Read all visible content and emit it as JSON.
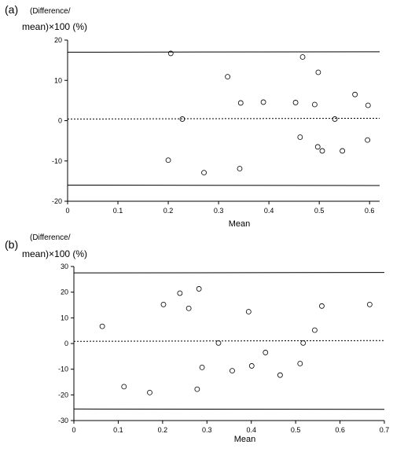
{
  "chart_data": [
    {
      "type": "scatter",
      "panel_label": "(a)",
      "ylabel_line1": "(Difference/",
      "ylabel_line2": "mean)×100 (%)",
      "xlabel": "Mean",
      "xlim": [
        0,
        0.62
      ],
      "ylim": [
        -20,
        20
      ],
      "xticks": [
        0,
        0.1,
        0.2,
        0.3,
        0.4,
        0.5,
        0.6
      ],
      "xtick_labels": [
        "0",
        "0.1",
        "0.2",
        "0.3",
        "0.4",
        "0.5",
        "0.6"
      ],
      "yticks": [
        -20,
        -10,
        0,
        10,
        20
      ],
      "ytick_labels": [
        "-20",
        "-10",
        "0",
        "10",
        "20"
      ],
      "mean_line": 0.5,
      "upper_limit": 17.0,
      "lower_limit": -16.0,
      "points": [
        {
          "x": 0.205,
          "y": 16.7
        },
        {
          "x": 0.228,
          "y": 0.4
        },
        {
          "x": 0.2,
          "y": -9.8
        },
        {
          "x": 0.271,
          "y": -12.9
        },
        {
          "x": 0.318,
          "y": 10.9
        },
        {
          "x": 0.344,
          "y": 4.4
        },
        {
          "x": 0.342,
          "y": -11.9
        },
        {
          "x": 0.389,
          "y": 4.6
        },
        {
          "x": 0.453,
          "y": 4.5
        },
        {
          "x": 0.467,
          "y": 15.8
        },
        {
          "x": 0.462,
          "y": -4.1
        },
        {
          "x": 0.491,
          "y": 4.0
        },
        {
          "x": 0.498,
          "y": 12.0
        },
        {
          "x": 0.497,
          "y": -6.5
        },
        {
          "x": 0.506,
          "y": -7.5
        },
        {
          "x": 0.531,
          "y": 0.4
        },
        {
          "x": 0.546,
          "y": -7.5
        },
        {
          "x": 0.571,
          "y": 6.5
        },
        {
          "x": 0.597,
          "y": 3.8
        },
        {
          "x": 0.596,
          "y": -4.8
        }
      ]
    },
    {
      "type": "scatter",
      "panel_label": "(b)",
      "ylabel_line1": "(Difference/",
      "ylabel_line2": "mean)×100 (%)",
      "xlabel": "Mean",
      "xlim": [
        0,
        0.7
      ],
      "ylim": [
        -30,
        30
      ],
      "xticks": [
        0,
        0.1,
        0.2,
        0.3,
        0.4,
        0.5,
        0.6,
        0.7
      ],
      "xtick_labels": [
        "0",
        "0.1",
        "0.2",
        "0.3",
        "0.4",
        "0.5",
        "0.6",
        "0.7"
      ],
      "yticks": [
        -30,
        -20,
        -10,
        0,
        10,
        20,
        30
      ],
      "ytick_labels": [
        "-30",
        "-20",
        "-10",
        "0",
        "10",
        "20",
        "30"
      ],
      "mean_line": 1.0,
      "upper_limit": 27.5,
      "lower_limit": -25.5,
      "points": [
        {
          "x": 0.064,
          "y": 6.7
        },
        {
          "x": 0.113,
          "y": -16.8
        },
        {
          "x": 0.171,
          "y": -19.1
        },
        {
          "x": 0.202,
          "y": 15.2
        },
        {
          "x": 0.239,
          "y": 19.6
        },
        {
          "x": 0.259,
          "y": 13.7
        },
        {
          "x": 0.282,
          "y": 21.3
        },
        {
          "x": 0.278,
          "y": -17.8
        },
        {
          "x": 0.289,
          "y": -9.3
        },
        {
          "x": 0.326,
          "y": 0.2
        },
        {
          "x": 0.357,
          "y": -10.6
        },
        {
          "x": 0.394,
          "y": 12.4
        },
        {
          "x": 0.401,
          "y": -8.7
        },
        {
          "x": 0.432,
          "y": -3.5
        },
        {
          "x": 0.465,
          "y": -12.3
        },
        {
          "x": 0.51,
          "y": -7.8
        },
        {
          "x": 0.517,
          "y": 0.2
        },
        {
          "x": 0.543,
          "y": 5.2
        },
        {
          "x": 0.559,
          "y": 14.6
        },
        {
          "x": 0.667,
          "y": 15.2
        }
      ]
    }
  ]
}
